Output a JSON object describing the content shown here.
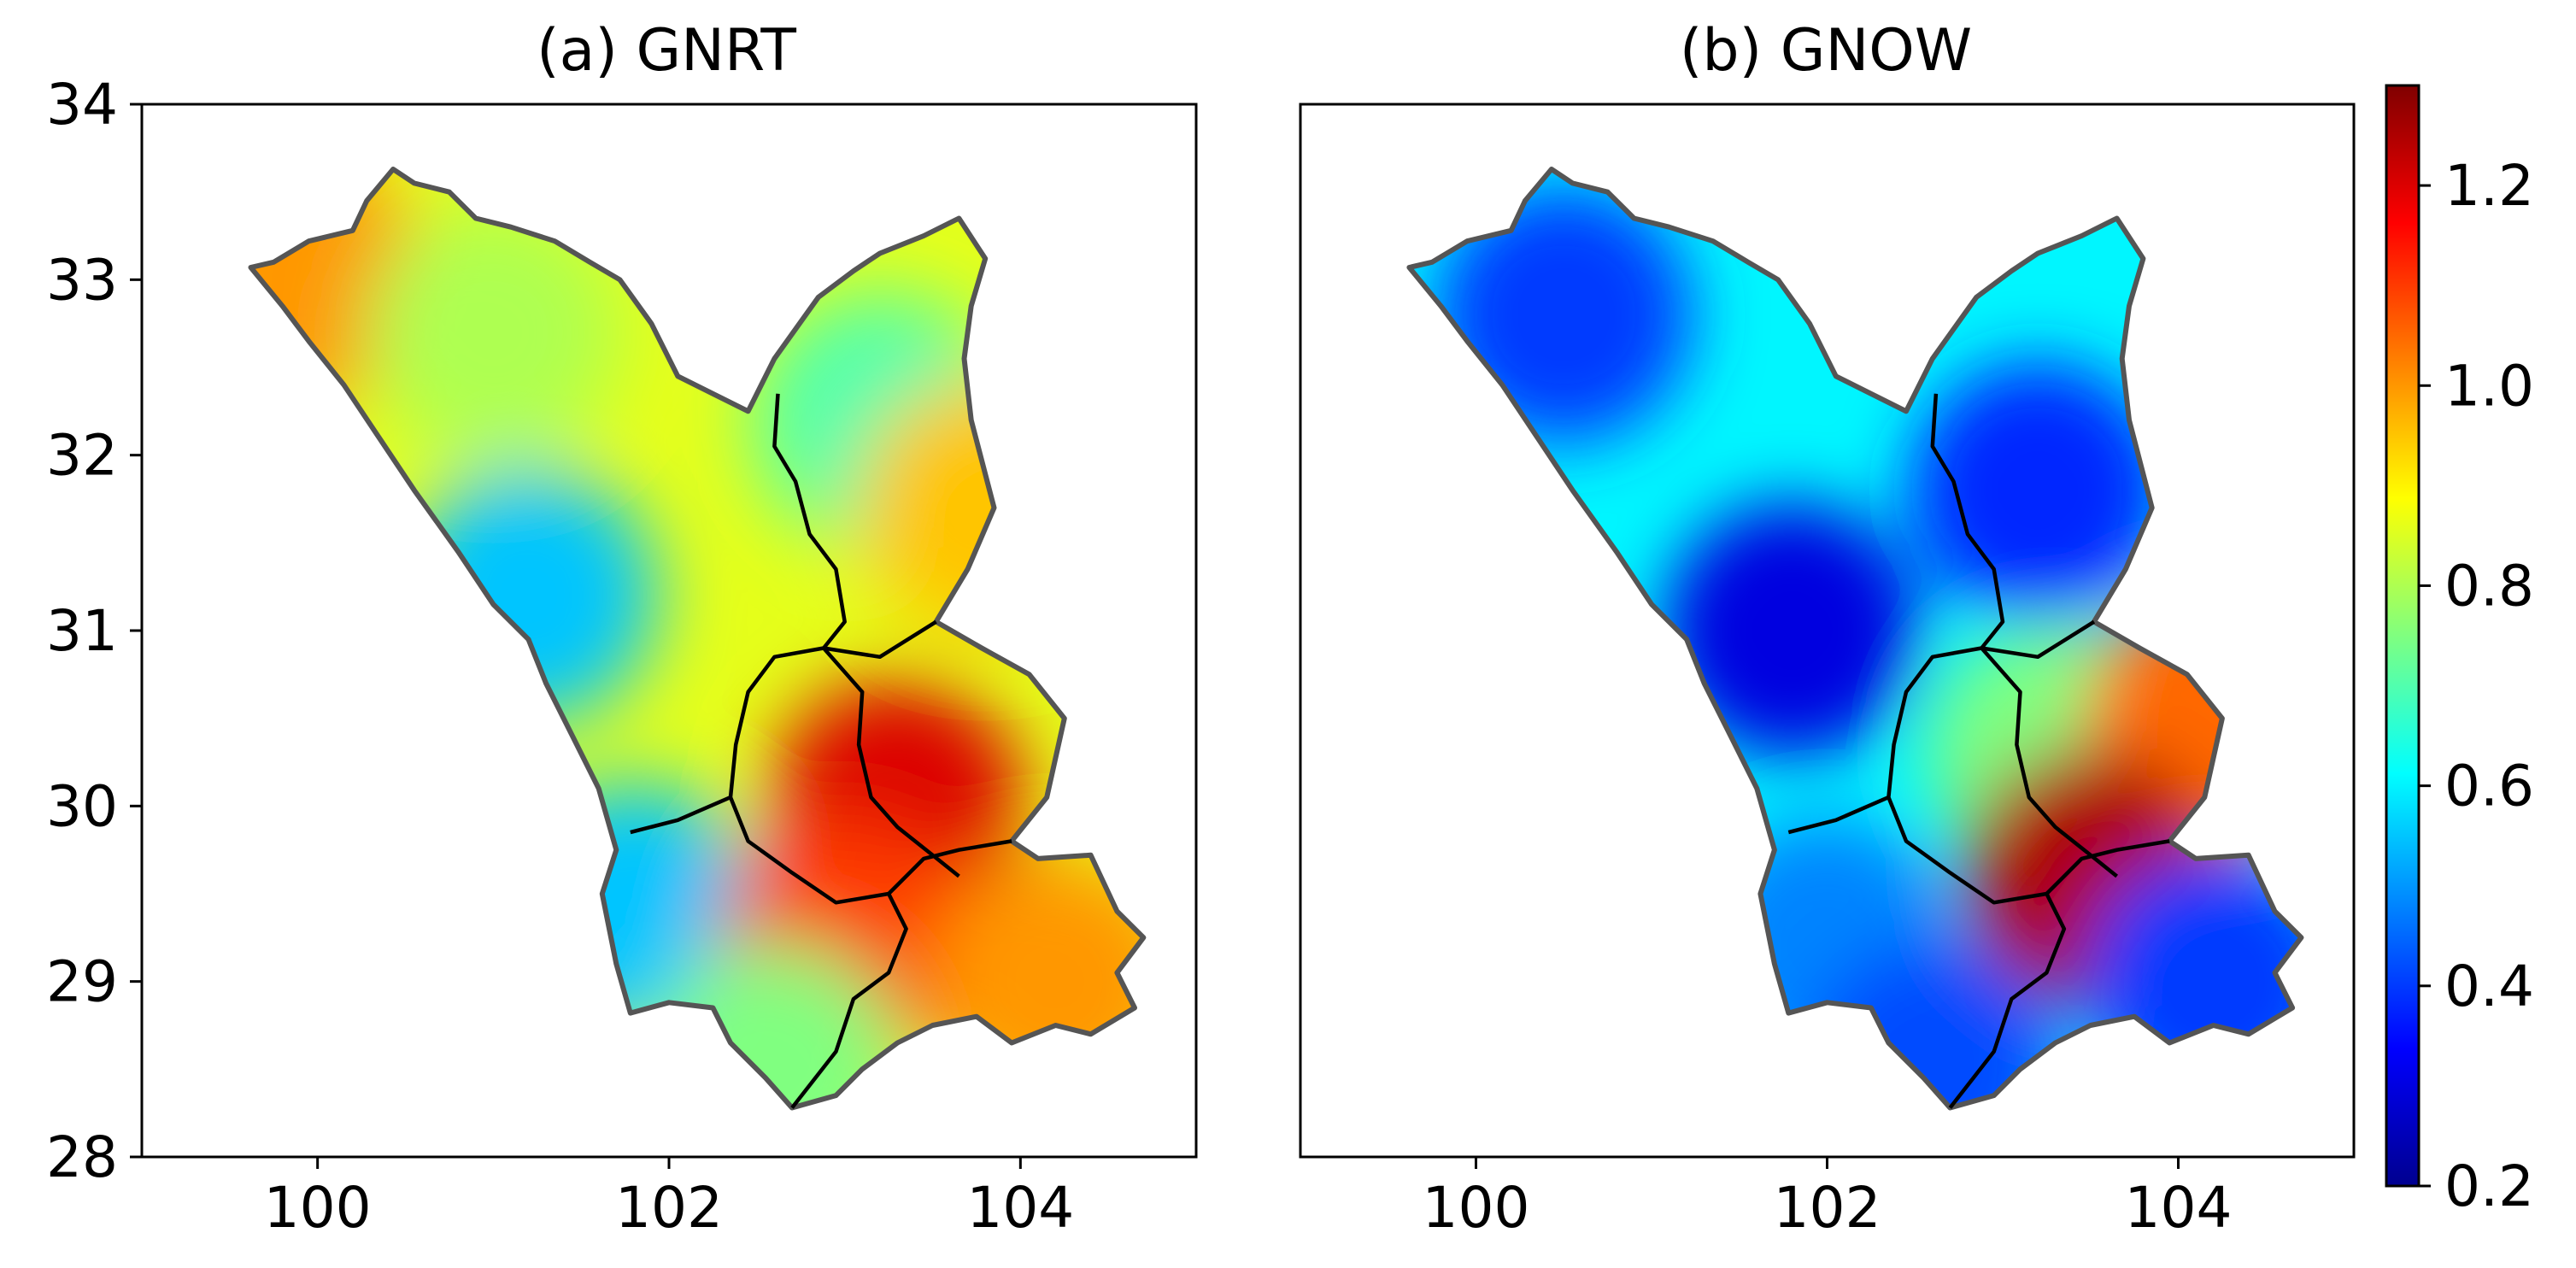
{
  "chart_data": [
    {
      "type": "heatmap",
      "title": "(a) GNRT",
      "xlabel": "",
      "ylabel": "",
      "xlim": [
        99,
        105
      ],
      "ylim": [
        28,
        34
      ],
      "x_ticks": [
        "100",
        "102",
        "104"
      ],
      "y_ticks": [
        "28",
        "29",
        "30",
        "31",
        "32",
        "33",
        "34"
      ],
      "value_range": [
        0.5,
        1.25
      ],
      "regions": [
        {
          "region": "northwest corner (~99.9E, 33.0N)",
          "value": 1.0
        },
        {
          "region": "north-west highlands (~101E, 32.7N)",
          "value": 0.8
        },
        {
          "region": "central west (~101.2E, 31.2N)",
          "value": 0.55
        },
        {
          "region": "north-east subbasin (~103.2E, 32.2N)",
          "value": 0.7
        },
        {
          "region": "east edge (~103.8E, 31.7N)",
          "value": 0.95
        },
        {
          "region": "centre-east hotspot (~103.3E, 30.0N)",
          "value": 1.2
        },
        {
          "region": "south-west (~101.8E, 29.4N)",
          "value": 0.55
        },
        {
          "region": "south-centre (~103.0E, 29.2N)",
          "value": 1.1
        },
        {
          "region": "south-east (~104.2E, 29.0N)",
          "value": 1.0
        },
        {
          "region": "south tip (~102.6E, 28.5N)",
          "value": 0.75
        }
      ]
    },
    {
      "type": "heatmap",
      "title": "(b) GNOW",
      "xlabel": "",
      "ylabel": "",
      "xlim": [
        99,
        105
      ],
      "ylim": [
        28,
        34
      ],
      "x_ticks": [
        "100",
        "102",
        "104"
      ],
      "y_ticks": [],
      "value_range": [
        0.3,
        1.25
      ],
      "regions": [
        {
          "region": "north-west (~100.5E, 32.8N)",
          "value": 0.4
        },
        {
          "region": "central west minimum (~101.8E, 31.0N)",
          "value": 0.3
        },
        {
          "region": "north-east subbasin (~103.2E, 31.8N)",
          "value": 0.38
        },
        {
          "region": "centre-east (~103.3E, 30.3N)",
          "value": 0.75
        },
        {
          "region": "east edge hotspot (~104.2E, 30.5N)",
          "value": 1.05
        },
        {
          "region": "centre hotspot (~103.5E, 29.6N)",
          "value": 1.25
        },
        {
          "region": "south-west (~102.0E, 29.2N)",
          "value": 0.48
        },
        {
          "region": "south-east (~104.2E, 29.0N)",
          "value": 0.4
        },
        {
          "region": "south tip (~102.6E, 28.5N)",
          "value": 0.42
        }
      ]
    }
  ],
  "colorbar": {
    "colormap": "jet",
    "min": 0.2,
    "max": 1.3,
    "ticks": [
      "0.2",
      "0.4",
      "0.6",
      "0.8",
      "1.0",
      "1.2"
    ]
  },
  "boundary_color": "#555555",
  "subbasin_line_color": "#000000"
}
